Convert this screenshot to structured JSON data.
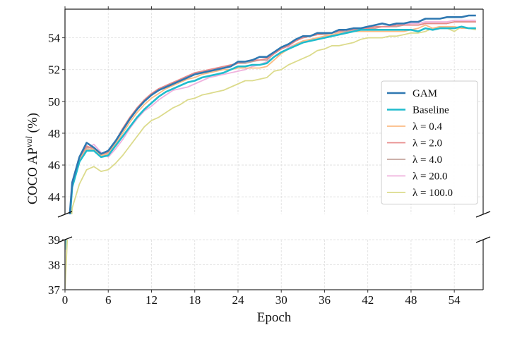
{
  "chart_data": {
    "type": "line",
    "title": "",
    "xlabel": "Epoch",
    "ylabel": "COCO AP^val (%)",
    "ylabel_parts": {
      "main": "COCO AP",
      "sup": "val",
      "suffix": " (%)"
    },
    "broken_y_axis": true,
    "top_panel": {
      "ylim": [
        42.9,
        55.8
      ],
      "yticks": [
        44,
        46,
        48,
        50,
        52,
        54
      ]
    },
    "bottom_panel": {
      "ylim": [
        37,
        39
      ],
      "yticks": [
        37,
        38,
        39
      ]
    },
    "xlim": [
      0,
      58
    ],
    "xticks": [
      0,
      6,
      12,
      18,
      24,
      30,
      36,
      42,
      48,
      54
    ],
    "grid": true,
    "legend_position": "lower right",
    "x": [
      0,
      1,
      2,
      3,
      4,
      5,
      6,
      7,
      8,
      9,
      10,
      11,
      12,
      13,
      14,
      15,
      16,
      17,
      18,
      19,
      20,
      21,
      22,
      23,
      24,
      25,
      26,
      27,
      28,
      29,
      30,
      31,
      32,
      33,
      34,
      35,
      36,
      37,
      38,
      39,
      40,
      41,
      42,
      43,
      44,
      45,
      46,
      47,
      48,
      49,
      50,
      51,
      52,
      53,
      54,
      55,
      56,
      57
    ],
    "series": [
      {
        "name": "GAM",
        "color": "#2f78b1",
        "width": 2.6,
        "values": [
          39.0,
          44.9,
          46.5,
          47.4,
          47.1,
          46.7,
          46.9,
          47.5,
          48.2,
          48.9,
          49.5,
          50.0,
          50.4,
          50.7,
          50.9,
          51.1,
          51.3,
          51.5,
          51.7,
          51.8,
          51.9,
          52.0,
          52.1,
          52.2,
          52.5,
          52.5,
          52.6,
          52.8,
          52.8,
          53.1,
          53.4,
          53.6,
          53.9,
          54.1,
          54.1,
          54.3,
          54.3,
          54.3,
          54.5,
          54.5,
          54.6,
          54.6,
          54.7,
          54.8,
          54.9,
          54.8,
          54.9,
          54.9,
          55.0,
          55.0,
          55.2,
          55.2,
          55.2,
          55.3,
          55.3,
          55.3,
          55.4,
          55.4
        ]
      },
      {
        "name": "Baseline",
        "color": "#1fbccd",
        "width": 2.6,
        "values": [
          38.6,
          44.6,
          46.2,
          46.9,
          46.9,
          46.5,
          46.6,
          47.2,
          47.8,
          48.4,
          49.0,
          49.5,
          49.9,
          50.3,
          50.6,
          50.8,
          51.0,
          51.2,
          51.3,
          51.5,
          51.6,
          51.7,
          51.8,
          52.0,
          52.2,
          52.2,
          52.3,
          52.3,
          52.4,
          52.8,
          53.1,
          53.3,
          53.5,
          53.7,
          53.8,
          53.9,
          54.0,
          54.1,
          54.2,
          54.3,
          54.4,
          54.5,
          54.5,
          54.5,
          54.5,
          54.5,
          54.5,
          54.5,
          54.5,
          54.4,
          54.6,
          54.5,
          54.6,
          54.6,
          54.6,
          54.7,
          54.6,
          54.6
        ]
      },
      {
        "name": "λ = 0.4",
        "color": "#fbbc85",
        "width": 1.8,
        "values": [
          38.8,
          44.7,
          46.3,
          47.0,
          47.0,
          46.6,
          46.7,
          47.3,
          48.0,
          48.7,
          49.3,
          49.8,
          50.2,
          50.5,
          50.8,
          51.0,
          51.2,
          51.4,
          51.5,
          51.7,
          51.8,
          51.9,
          52.0,
          52.0,
          52.1,
          52.1,
          52.1,
          52.1,
          52.2,
          52.6,
          53.0,
          53.3,
          53.6,
          53.8,
          53.9,
          54.0,
          54.1,
          54.2,
          54.3,
          54.3,
          54.4,
          54.4,
          54.4,
          54.4,
          54.4,
          54.4,
          54.4,
          54.4,
          54.5,
          54.6,
          54.8,
          54.6,
          54.7,
          54.7,
          54.7,
          54.6,
          54.6,
          54.6
        ]
      },
      {
        "name": "λ = 2.0",
        "color": "#e88a8a",
        "width": 1.8,
        "values": [
          38.9,
          44.8,
          46.4,
          47.2,
          47.0,
          46.6,
          46.8,
          47.5,
          48.3,
          49.0,
          49.6,
          50.1,
          50.5,
          50.8,
          51.0,
          51.2,
          51.4,
          51.6,
          51.8,
          51.9,
          52.0,
          52.1,
          52.2,
          52.3,
          52.4,
          52.5,
          52.6,
          52.6,
          52.7,
          53.0,
          53.3,
          53.5,
          53.8,
          54.0,
          54.1,
          54.2,
          54.3,
          54.3,
          54.4,
          54.5,
          54.5,
          54.5,
          54.6,
          54.7,
          54.7,
          54.7,
          54.8,
          54.8,
          54.8,
          54.8,
          54.9,
          54.9,
          54.9,
          54.9,
          55.0,
          55.0,
          55.0,
          55.0
        ]
      },
      {
        "name": "λ = 4.0",
        "color": "#c4a49e",
        "width": 1.8,
        "values": [
          38.9,
          44.8,
          46.4,
          47.1,
          47.1,
          46.6,
          46.7,
          47.4,
          48.2,
          48.9,
          49.5,
          50.0,
          50.4,
          50.7,
          51.0,
          51.2,
          51.3,
          51.5,
          51.7,
          51.8,
          51.9,
          52.0,
          52.1,
          52.2,
          52.4,
          52.4,
          52.5,
          52.6,
          52.6,
          53.0,
          53.3,
          53.5,
          53.8,
          54.0,
          54.1,
          54.2,
          54.2,
          54.3,
          54.4,
          54.4,
          54.5,
          54.5,
          54.6,
          54.6,
          54.7,
          54.7,
          54.7,
          54.8,
          54.8,
          54.8,
          54.9,
          54.9,
          54.9,
          54.9,
          55.0,
          55.0,
          55.0,
          55.0
        ]
      },
      {
        "name": "λ = 20.0",
        "color": "#efb2de",
        "width": 1.8,
        "values": [
          38.5,
          44.6,
          46.3,
          47.0,
          47.3,
          46.8,
          46.5,
          47.0,
          47.6,
          48.3,
          48.9,
          49.4,
          49.7,
          50.1,
          50.4,
          50.7,
          50.8,
          50.9,
          51.1,
          51.3,
          51.5,
          51.6,
          51.7,
          51.8,
          51.9,
          52.0,
          52.2,
          52.3,
          52.5,
          52.8,
          53.0,
          53.4,
          53.6,
          53.8,
          53.9,
          54.0,
          54.1,
          54.2,
          54.3,
          54.4,
          54.5,
          54.5,
          54.6,
          54.6,
          54.7,
          54.7,
          54.8,
          54.8,
          54.9,
          54.9,
          55.0,
          55.0,
          55.0,
          55.0,
          55.1,
          55.1,
          55.1,
          55.1
        ]
      },
      {
        "name": "λ = 100.0",
        "color": "#dcdb8c",
        "width": 1.8,
        "values": [
          37.0,
          43.3,
          44.8,
          45.7,
          45.9,
          45.6,
          45.7,
          46.1,
          46.6,
          47.2,
          47.8,
          48.4,
          48.8,
          49.0,
          49.3,
          49.6,
          49.8,
          50.1,
          50.2,
          50.4,
          50.5,
          50.6,
          50.7,
          50.9,
          51.1,
          51.3,
          51.3,
          51.4,
          51.5,
          51.9,
          52.0,
          52.3,
          52.5,
          52.7,
          52.9,
          53.2,
          53.3,
          53.5,
          53.5,
          53.6,
          53.7,
          53.9,
          54.0,
          54.0,
          54.0,
          54.1,
          54.1,
          54.2,
          54.3,
          54.3,
          54.4,
          54.6,
          54.7,
          54.6,
          54.4,
          54.7,
          54.6,
          54.5
        ]
      }
    ]
  }
}
